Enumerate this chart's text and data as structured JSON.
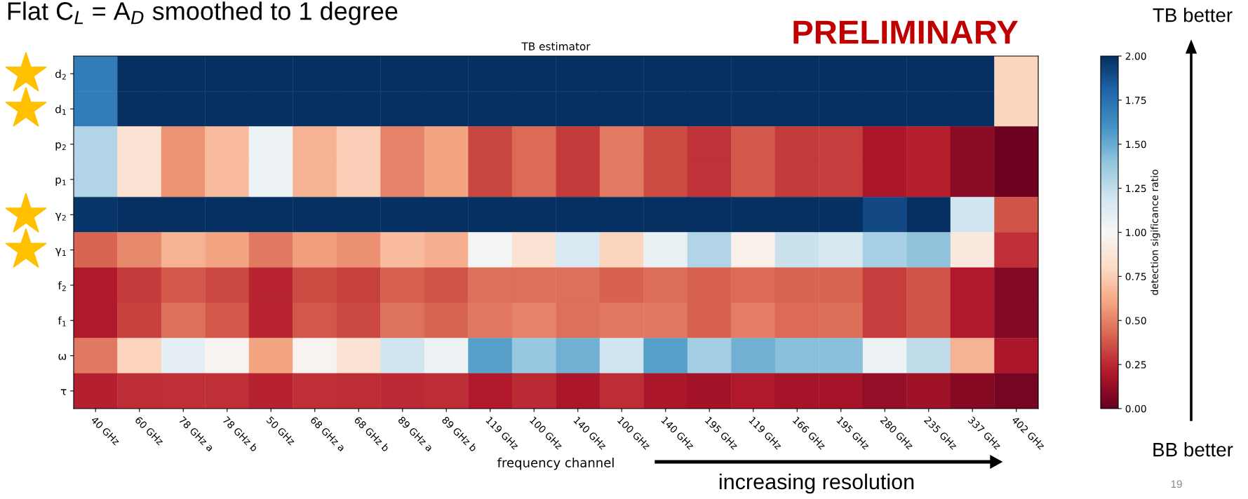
{
  "chart_data": {
    "type": "heatmap",
    "title": "TB estimator",
    "xlabel": "frequency channel",
    "clabel": "detection sigificance ratio",
    "categories": [
      "40 GHz",
      "60 GHz",
      "78 GHz a",
      "78 GHz b",
      "50 GHz",
      "68 GHz a",
      "68 GHz b",
      "89 GHz a",
      "89 GHz b",
      "119 GHz",
      "100 GHz",
      "140 GHz",
      "100 GHz",
      "140 GHz",
      "195 GHz",
      "119 GHz",
      "166 GHz",
      "195 GHz",
      "280 GHz",
      "235 GHz",
      "337 GHz",
      "402 GHz"
    ],
    "y_categories": [
      "d$_{2}$",
      "d$_{1}$",
      "p$_{2}$",
      "p$_{1}$",
      "γ$_{2}$",
      "γ$_{1}$",
      "f$_{2}$",
      "f$_{1}$",
      "ω",
      "τ"
    ],
    "cells": [
      [
        1.7,
        2.0,
        2.0,
        2.0,
        2.0,
        2.0,
        2.0,
        2.0,
        2.0,
        2.0,
        2.0,
        2.0,
        2.0,
        2.0,
        2.0,
        2.0,
        2.0,
        2.0,
        2.0,
        2.0,
        2.0,
        0.78
      ],
      [
        1.7,
        2.0,
        2.0,
        2.0,
        2.0,
        2.0,
        2.0,
        2.0,
        2.0,
        2.0,
        2.0,
        2.0,
        2.0,
        2.0,
        2.0,
        2.0,
        2.0,
        2.0,
        2.0,
        2.0,
        2.0,
        0.78
      ],
      [
        1.3,
        0.85,
        0.55,
        0.68,
        1.05,
        0.65,
        0.75,
        0.5,
        0.6,
        0.33,
        0.43,
        0.3,
        0.48,
        0.35,
        0.28,
        0.38,
        0.3,
        0.31,
        0.18,
        0.22,
        0.1,
        0.02
      ],
      [
        1.3,
        0.85,
        0.55,
        0.68,
        1.05,
        0.65,
        0.75,
        0.5,
        0.6,
        0.33,
        0.43,
        0.3,
        0.48,
        0.35,
        0.28,
        0.38,
        0.3,
        0.31,
        0.18,
        0.22,
        0.1,
        0.02
      ],
      [
        1.97,
        2.0,
        2.0,
        2.0,
        2.0,
        2.0,
        2.0,
        2.0,
        2.0,
        2.0,
        2.0,
        2.0,
        2.0,
        2.0,
        2.0,
        2.0,
        2.0,
        2.0,
        1.9,
        2.0,
        1.2,
        0.37
      ],
      [
        0.42,
        0.52,
        0.65,
        0.6,
        0.47,
        0.58,
        0.54,
        0.68,
        0.64,
        1.02,
        0.85,
        1.15,
        0.78,
        1.07,
        1.3,
        0.95,
        1.22,
        1.17,
        1.33,
        1.4,
        0.9,
        0.27
      ],
      [
        0.2,
        0.3,
        0.38,
        0.34,
        0.24,
        0.35,
        0.32,
        0.41,
        0.37,
        0.45,
        0.45,
        0.45,
        0.41,
        0.44,
        0.41,
        0.43,
        0.42,
        0.42,
        0.31,
        0.37,
        0.2,
        0.08
      ],
      [
        0.2,
        0.32,
        0.45,
        0.38,
        0.24,
        0.38,
        0.34,
        0.46,
        0.42,
        0.47,
        0.5,
        0.45,
        0.47,
        0.47,
        0.41,
        0.49,
        0.43,
        0.44,
        0.31,
        0.37,
        0.2,
        0.08
      ],
      [
        0.47,
        0.77,
        1.1,
        0.97,
        0.6,
        0.97,
        0.85,
        1.2,
        1.05,
        1.55,
        1.38,
        1.48,
        1.2,
        1.55,
        1.35,
        1.48,
        1.42,
        1.42,
        1.05,
        1.25,
        0.65,
        0.18
      ],
      [
        0.22,
        0.26,
        0.27,
        0.27,
        0.23,
        0.27,
        0.26,
        0.25,
        0.26,
        0.2,
        0.25,
        0.18,
        0.26,
        0.18,
        0.16,
        0.2,
        0.17,
        0.17,
        0.12,
        0.15,
        0.09,
        0.04
      ]
    ],
    "clim": [
      0,
      2
    ],
    "cticks": [
      {
        "value": 0,
        "label": "0.00"
      },
      {
        "value": 0.25,
        "label": "0.25"
      },
      {
        "value": 0.5,
        "label": "0.50"
      },
      {
        "value": 0.75,
        "label": "0.75"
      },
      {
        "value": 1,
        "label": "1.00"
      },
      {
        "value": 1.25,
        "label": "1.25"
      },
      {
        "value": 1.5,
        "label": "1.50"
      },
      {
        "value": 1.75,
        "label": "1.75"
      },
      {
        "value": 2,
        "label": "2.00"
      }
    ],
    "annotations": [
      "Flat C$_{L}$ = A$_{D}$ smoothed to 1 degree",
      "PRELIMINARY",
      "TB better",
      "BB better",
      "increasing resolution",
      "19"
    ]
  }
}
